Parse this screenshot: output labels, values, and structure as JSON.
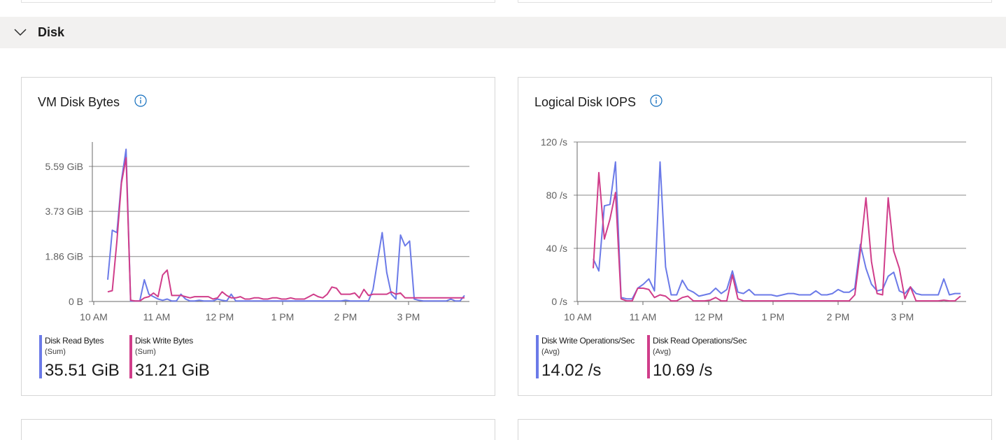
{
  "section": {
    "title": "Disk"
  },
  "cards": [
    {
      "title": "VM Disk Bytes",
      "legend": [
        {
          "name": "Disk Read Bytes",
          "agg": "(Sum)",
          "value": "35.51 GiB",
          "color": "#6b7ae8"
        },
        {
          "name": "Disk Write Bytes",
          "agg": "(Sum)",
          "value": "31.21 GiB",
          "color": "#d03d8a"
        }
      ]
    },
    {
      "title": "Logical Disk IOPS",
      "legend": [
        {
          "name": "Disk Write Operations/Sec",
          "agg": "(Avg)",
          "value": "14.02 /s",
          "color": "#6b7ae8"
        },
        {
          "name": "Disk Read Operations/Sec",
          "agg": "(Avg)",
          "value": "10.69 /s",
          "color": "#d03d8a"
        }
      ]
    }
  ],
  "colors": {
    "series_blue": "#6b7ae8",
    "series_pink": "#d03d8a",
    "info_icon": "#0f6cbd",
    "header_bg": "#f2f1f0"
  },
  "chart_data": [
    {
      "type": "line",
      "title": "VM Disk Bytes",
      "x_ticks": [
        "10 AM",
        "11 AM",
        "12 PM",
        "1 PM",
        "2 PM",
        "3 PM"
      ],
      "y_ticks": [
        "0 B",
        "1.86 GiB",
        "3.73 GiB",
        "5.59 GiB"
      ],
      "ylim": [
        0,
        6.6
      ],
      "grid": true,
      "x_start": "10 AM",
      "x_step_minutes": 5,
      "series": [
        {
          "name": "Disk Read Bytes",
          "color": "#6b7ae8",
          "values": [
            0.9,
            2.95,
            2.85,
            5.0,
            6.3,
            0.02,
            0.02,
            0.02,
            0.9,
            0.3,
            0.2,
            0.1,
            0.05,
            0.1,
            0.02,
            0.02,
            0.3,
            0.1,
            0.02,
            0.02,
            0.05,
            0.02,
            0.02,
            0.02,
            0.1,
            0.05,
            0.02,
            0.3,
            0.02,
            0.02,
            0.02,
            0.02,
            0.02,
            0.02,
            0.02,
            0.02,
            0.02,
            0.02,
            0.02,
            0.02,
            0.02,
            0.02,
            0.02,
            0.02,
            0.02,
            0.02,
            0.02,
            0.02,
            0.02,
            0.02,
            0.02,
            0.02,
            0.05,
            0.02,
            0.02,
            0.02,
            0.02,
            0.02,
            0.5,
            1.7,
            2.85,
            1.2,
            0.3,
            0.1,
            2.75,
            2.3,
            2.5,
            0.1,
            0.05,
            0.02,
            0.02,
            0.02,
            0.02,
            0.02,
            0.02,
            0.1,
            0.02,
            0.02,
            0.25
          ]
        },
        {
          "name": "Disk Write Bytes",
          "color": "#d03d8a",
          "values": [
            0.4,
            0.45,
            2.5,
            4.9,
            5.95,
            0.05,
            0.02,
            0.02,
            0.15,
            0.2,
            0.35,
            0.2,
            1.1,
            1.3,
            0.25,
            0.25,
            0.25,
            0.2,
            0.15,
            0.2,
            0.2,
            0.2,
            0.2,
            0.1,
            0.15,
            0.4,
            0.25,
            0.15,
            0.15,
            0.2,
            0.1,
            0.1,
            0.15,
            0.15,
            0.1,
            0.1,
            0.15,
            0.15,
            0.1,
            0.1,
            0.15,
            0.1,
            0.1,
            0.1,
            0.2,
            0.3,
            0.2,
            0.15,
            0.3,
            0.6,
            0.55,
            0.3,
            0.3,
            0.3,
            0.35,
            0.15,
            0.5,
            0.25,
            0.3,
            0.3,
            0.3,
            0.3,
            0.4,
            0.3,
            0.35,
            0.15,
            0.15,
            0.15,
            0.15,
            0.15,
            0.15,
            0.15,
            0.15,
            0.15,
            0.15,
            0.15,
            0.15,
            0.15,
            0.15
          ]
        }
      ]
    },
    {
      "type": "line",
      "title": "Logical Disk IOPS",
      "x_ticks": [
        "10 AM",
        "11 AM",
        "12 PM",
        "1 PM",
        "2 PM",
        "3 PM"
      ],
      "y_ticks": [
        "0 /s",
        "40 /s",
        "80 /s",
        "120 /s"
      ],
      "ylim": [
        0,
        120
      ],
      "grid": true,
      "x_start": "10 AM",
      "x_step_minutes": 5,
      "series": [
        {
          "name": "Disk Write Operations/Sec",
          "color": "#6b7ae8",
          "values": [
            32,
            23,
            72,
            73,
            105,
            3,
            2,
            2,
            10,
            13,
            17,
            8,
            105,
            26,
            5,
            5,
            16,
            9,
            7,
            4,
            5,
            6,
            10,
            6,
            9,
            23,
            7,
            6,
            9,
            5,
            5,
            5,
            5,
            4,
            5,
            6,
            6,
            5,
            5,
            5,
            8,
            5,
            5,
            6,
            9,
            7,
            7,
            10,
            43,
            25,
            13,
            8,
            9,
            19,
            22,
            8,
            6,
            11,
            6,
            5,
            5,
            5,
            5,
            17,
            5,
            6,
            6
          ]
        },
        {
          "name": "Disk Read Operations/Sec",
          "color": "#d03d8a",
          "values": [
            25,
            97,
            47,
            62,
            82,
            2,
            0.5,
            0.5,
            10,
            10,
            9,
            3,
            5,
            4,
            0.5,
            0.5,
            3,
            4,
            0.5,
            0.5,
            0.5,
            1,
            3,
            0.5,
            0.5,
            20,
            2,
            0.5,
            0.5,
            0.5,
            0.5,
            0.5,
            0.5,
            0.5,
            0.5,
            0.5,
            0.5,
            0.5,
            0.5,
            0.5,
            0.5,
            0.5,
            0.5,
            0.5,
            0.5,
            0.5,
            0.5,
            5,
            38,
            78,
            30,
            6,
            5,
            78,
            38,
            25,
            2,
            11,
            0.5,
            0.5,
            0.5,
            0.5,
            0.5,
            1,
            0.5,
            0.5,
            4
          ]
        }
      ]
    }
  ]
}
